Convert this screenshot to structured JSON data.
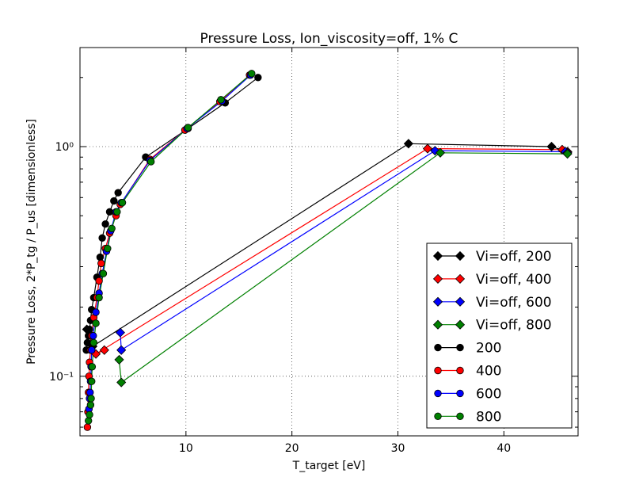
{
  "chart_data": {
    "type": "line",
    "title": "Pressure Loss, Ion_viscosity=off, 1% C",
    "xlabel": "T_target [eV]",
    "ylabel": "Pressure Loss, 2*P_tg / P_us [dimensionless]",
    "xlim": [
      0,
      47
    ],
    "ylim": [
      0.055,
      2.7
    ],
    "yscale": "log",
    "grid": true,
    "legend_position": "bottom-right",
    "x_ticks": [
      {
        "value": 10,
        "label": "10"
      },
      {
        "value": 20,
        "label": "20"
      },
      {
        "value": 30,
        "label": "30"
      },
      {
        "value": 40,
        "label": "40"
      }
    ],
    "y_ticks": [
      {
        "value": 0.1,
        "label": "10⁻¹"
      },
      {
        "value": 1,
        "label": "10⁰"
      }
    ],
    "series": [
      {
        "name": "Vi=off, 200",
        "color": "#000000",
        "marker": "diamond",
        "line": true,
        "x": [
          0.65,
          1.2,
          31.0,
          44.5,
          46.0
        ],
        "y": [
          0.16,
          0.135,
          1.03,
          1.0,
          0.95
        ]
      },
      {
        "name": "Vi=off, 400",
        "color": "#ff0000",
        "marker": "diamond",
        "line": true,
        "x": [
          2.3,
          1.5,
          32.8,
          45.5,
          46.0
        ],
        "y": [
          0.13,
          0.125,
          0.98,
          0.97,
          0.95
        ]
      },
      {
        "name": "Vi=off, 600",
        "color": "#0000ff",
        "marker": "diamond",
        "line": true,
        "x": [
          3.8,
          3.9,
          33.5,
          45.8,
          46.0
        ],
        "y": [
          0.155,
          0.13,
          0.96,
          0.95,
          0.94
        ]
      },
      {
        "name": "Vi=off, 800",
        "color": "#008000",
        "marker": "diamond",
        "line": true,
        "x": [
          3.7,
          3.9,
          34.0,
          46.0
        ],
        "y": [
          0.118,
          0.094,
          0.94,
          0.93
        ]
      },
      {
        "name": "200",
        "color": "#000000",
        "marker": "circle",
        "line": true,
        "x": [
          0.6,
          0.7,
          0.8,
          0.9,
          1.0,
          1.1,
          1.3,
          1.6,
          1.9,
          2.1,
          2.4,
          2.8,
          3.2,
          3.6,
          6.2,
          10.2,
          13.7,
          16.8
        ],
        "y": [
          0.13,
          0.14,
          0.15,
          0.16,
          0.175,
          0.195,
          0.22,
          0.27,
          0.33,
          0.4,
          0.46,
          0.52,
          0.58,
          0.63,
          0.9,
          1.2,
          1.55,
          2.0
        ]
      },
      {
        "name": "400",
        "color": "#ff0000",
        "marker": "circle",
        "line": true,
        "x": [
          0.7,
          0.75,
          0.8,
          0.85,
          0.9,
          1.0,
          1.1,
          1.3,
          1.6,
          1.8,
          2.0,
          2.4,
          2.8,
          3.4,
          3.8,
          6.6,
          9.9,
          13.2,
          16.0
        ],
        "y": [
          0.06,
          0.07,
          0.085,
          0.1,
          0.115,
          0.13,
          0.15,
          0.18,
          0.22,
          0.26,
          0.31,
          0.36,
          0.42,
          0.5,
          0.56,
          0.88,
          1.18,
          1.57,
          2.05
        ]
      },
      {
        "name": "600",
        "color": "#0000ff",
        "marker": "circle",
        "line": true,
        "x": [
          0.85,
          0.9,
          0.95,
          1.0,
          1.05,
          1.1,
          1.25,
          1.5,
          1.8,
          2.1,
          2.5,
          2.9,
          3.4,
          3.9,
          6.6,
          10.1,
          13.4,
          16.1
        ],
        "y": [
          0.072,
          0.08,
          0.085,
          0.095,
          0.11,
          0.13,
          0.15,
          0.19,
          0.23,
          0.28,
          0.35,
          0.43,
          0.52,
          0.57,
          0.87,
          1.2,
          1.58,
          2.05
        ]
      },
      {
        "name": "800",
        "color": "#008000",
        "marker": "circle",
        "line": true,
        "x": [
          0.8,
          0.9,
          1.0,
          1.05,
          1.1,
          1.15,
          1.3,
          1.5,
          1.8,
          2.2,
          2.6,
          3.0,
          3.5,
          4.0,
          6.7,
          10.2,
          13.3,
          16.2
        ],
        "y": [
          0.064,
          0.068,
          0.075,
          0.08,
          0.095,
          0.11,
          0.14,
          0.17,
          0.22,
          0.28,
          0.36,
          0.44,
          0.52,
          0.57,
          0.86,
          1.21,
          1.6,
          2.08
        ]
      }
    ]
  }
}
